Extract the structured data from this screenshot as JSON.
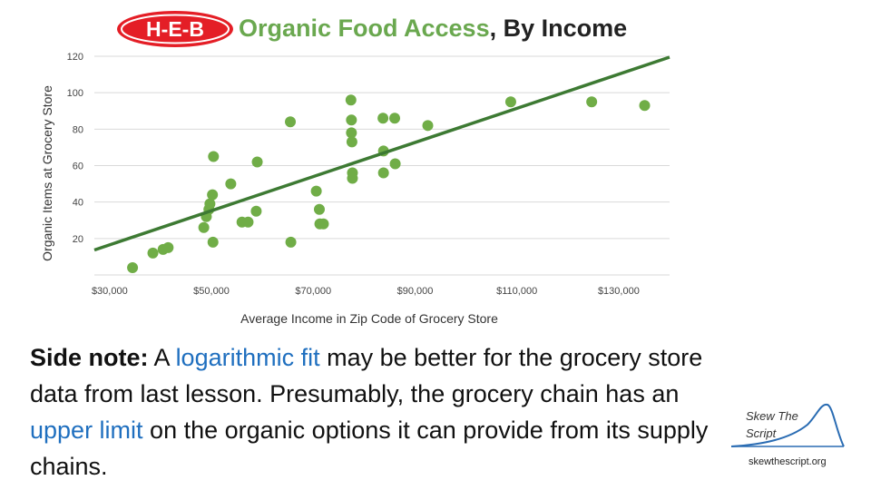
{
  "header": {
    "logo_text": "H-E-B",
    "title_accent": "Organic Food Access",
    "title_rest": ", By Income"
  },
  "chart_data": {
    "type": "scatter",
    "title": "Organic Food Access, By Income",
    "xlabel": "Average Income in Zip Code of Grocery Store",
    "ylabel": "Organic Items at Grocery Store",
    "xlim": [
      27000,
      140000
    ],
    "ylim": [
      0,
      120
    ],
    "x_ticks": [
      30000,
      50000,
      70000,
      90000,
      110000,
      130000
    ],
    "x_tick_labels": [
      "$30,000",
      "$50,000",
      "$70,000",
      "$90,000",
      "$110,000",
      "$130,000"
    ],
    "y_ticks": [
      20,
      40,
      60,
      80,
      100,
      120
    ],
    "y_tick_labels": [
      "20",
      "40",
      "60",
      "80",
      "100",
      "120"
    ],
    "grid": "horizontal",
    "legend": "none",
    "point_color": "#70ad47",
    "trendline_color": "#3d7a33",
    "trendline": {
      "x": [
        27000,
        140000
      ],
      "y": [
        13.7,
        119.5
      ]
    },
    "points": [
      {
        "x": 34500,
        "y": 4
      },
      {
        "x": 38500,
        "y": 12
      },
      {
        "x": 40500,
        "y": 14
      },
      {
        "x": 41500,
        "y": 15
      },
      {
        "x": 48500,
        "y": 26
      },
      {
        "x": 49000,
        "y": 32
      },
      {
        "x": 49500,
        "y": 36
      },
      {
        "x": 49700,
        "y": 39
      },
      {
        "x": 50200,
        "y": 44
      },
      {
        "x": 50300,
        "y": 18
      },
      {
        "x": 50400,
        "y": 65
      },
      {
        "x": 53800,
        "y": 50
      },
      {
        "x": 56000,
        "y": 29
      },
      {
        "x": 57200,
        "y": 29
      },
      {
        "x": 58800,
        "y": 35
      },
      {
        "x": 59000,
        "y": 62
      },
      {
        "x": 65500,
        "y": 84
      },
      {
        "x": 65600,
        "y": 18
      },
      {
        "x": 70600,
        "y": 46
      },
      {
        "x": 71200,
        "y": 36
      },
      {
        "x": 71300,
        "y": 28
      },
      {
        "x": 72000,
        "y": 28
      },
      {
        "x": 77400,
        "y": 96
      },
      {
        "x": 77500,
        "y": 85
      },
      {
        "x": 77500,
        "y": 78
      },
      {
        "x": 77600,
        "y": 73
      },
      {
        "x": 77700,
        "y": 56
      },
      {
        "x": 77700,
        "y": 53
      },
      {
        "x": 83700,
        "y": 86
      },
      {
        "x": 83800,
        "y": 68
      },
      {
        "x": 83800,
        "y": 56
      },
      {
        "x": 86000,
        "y": 86
      },
      {
        "x": 86100,
        "y": 61
      },
      {
        "x": 92500,
        "y": 82
      },
      {
        "x": 108800,
        "y": 95
      },
      {
        "x": 124700,
        "y": 95
      },
      {
        "x": 135100,
        "y": 93
      }
    ]
  },
  "note": {
    "lead": "Side note:",
    "t1": " A ",
    "h1": "logarithmic fit",
    "t2": " may be better for the grocery store data from last lesson. Presumably, the grocery chain has an ",
    "h2": "upper limit",
    "t3": " on the organic options it can provide from its supply chains."
  },
  "brand": {
    "name": "Skew The Script",
    "url": "skewthescript.org"
  }
}
